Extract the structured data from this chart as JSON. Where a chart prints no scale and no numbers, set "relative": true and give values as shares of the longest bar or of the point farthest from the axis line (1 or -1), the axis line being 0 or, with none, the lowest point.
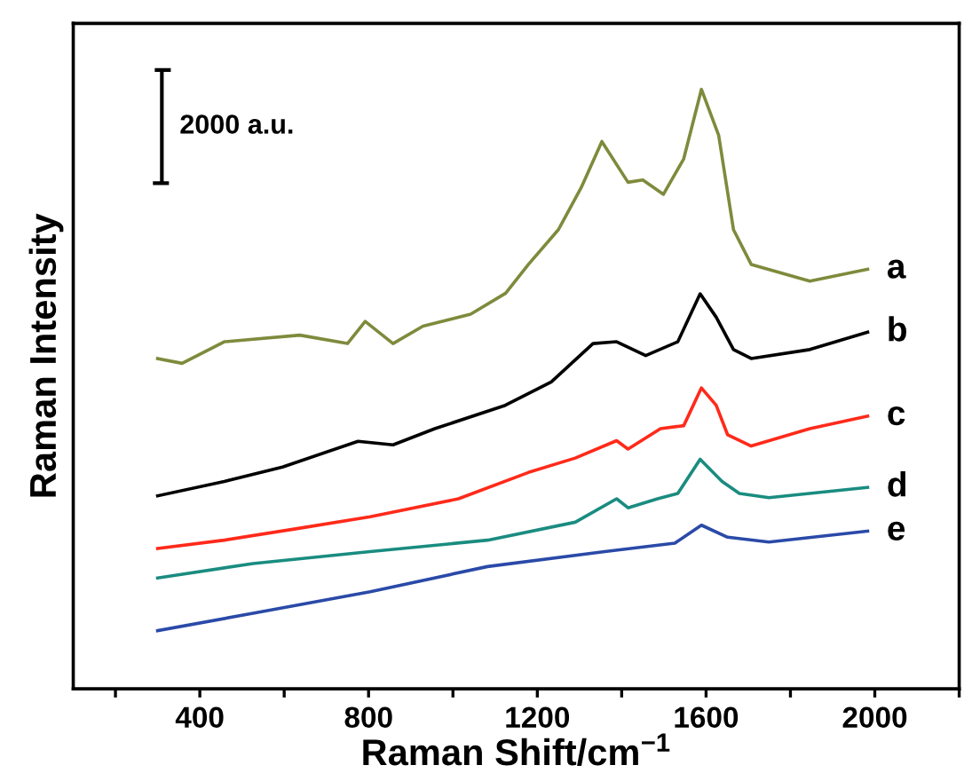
{
  "chart_data": {
    "type": "line",
    "relative": true,
    "xlabel": "Raman Shift/cm$^{−1}$",
    "ylabel": "Raman Intensity",
    "annotations": [
      "2000 a.u."
    ],
    "xlim": [
      100,
      2200
    ],
    "xticks": [
      {
        "value": 200,
        "label": null
      },
      400,
      {
        "value": 600,
        "label": null
      },
      800,
      {
        "value": 1000,
        "label": null
      },
      1200,
      {
        "value": 1400,
        "label": null
      },
      1600,
      {
        "value": 1800,
        "label": null
      },
      2000,
      {
        "value": 2200,
        "label": null
      }
    ],
    "legend": false,
    "marker": "none",
    "line_style": "solid",
    "series": [
      {
        "name": "a",
        "color": "#7f8a3c",
        "x": [
          300,
          358,
          458,
          637,
          750,
          792,
          858,
          929,
          1042,
          1125,
          1179,
          1250,
          1304,
          1353,
          1415,
          1450,
          1499,
          1547,
          1589,
          1630,
          1665,
          1707,
          1846,
          1983
        ],
        "values": [
          0.551,
          0.543,
          0.579,
          0.59,
          0.576,
          0.613,
          0.576,
          0.605,
          0.625,
          0.66,
          0.708,
          0.766,
          0.836,
          0.913,
          0.845,
          0.849,
          0.825,
          0.884,
          1.0,
          0.923,
          0.766,
          0.708,
          0.68,
          0.7
        ]
      },
      {
        "name": "b",
        "color": "#000000",
        "x": [
          300,
          458,
          596,
          775,
          858,
          957,
          1124,
          1233,
          1332,
          1388,
          1457,
          1533,
          1586,
          1624,
          1665,
          1707,
          1846,
          1983
        ],
        "values": [
          0.322,
          0.346,
          0.37,
          0.413,
          0.407,
          0.434,
          0.473,
          0.512,
          0.576,
          0.579,
          0.556,
          0.579,
          0.659,
          0.62,
          0.566,
          0.551,
          0.566,
          0.595
        ]
      },
      {
        "name": "c",
        "color": "#ff2a1a",
        "x": [
          300,
          458,
          637,
          804,
          1013,
          1179,
          1290,
          1388,
          1415,
          1492,
          1547,
          1589,
          1624,
          1651,
          1707,
          1846,
          1983
        ],
        "values": [
          0.234,
          0.248,
          0.268,
          0.287,
          0.317,
          0.361,
          0.385,
          0.414,
          0.4,
          0.434,
          0.439,
          0.502,
          0.473,
          0.424,
          0.405,
          0.434,
          0.455
        ]
      },
      {
        "name": "d",
        "color": "#1a8c80",
        "x": [
          300,
          526,
          804,
          1082,
          1290,
          1388,
          1415,
          1485,
          1533,
          1586,
          1638,
          1679,
          1749,
          1983
        ],
        "values": [
          0.185,
          0.209,
          0.229,
          0.248,
          0.278,
          0.317,
          0.302,
          0.317,
          0.326,
          0.383,
          0.346,
          0.326,
          0.319,
          0.336
        ]
      },
      {
        "name": "e",
        "color": "#2a4aa8",
        "x": [
          300,
          526,
          804,
          1082,
          1360,
          1526,
          1589,
          1651,
          1749,
          1983
        ],
        "values": [
          0.097,
          0.126,
          0.162,
          0.204,
          0.229,
          0.243,
          0.273,
          0.253,
          0.245,
          0.263
        ]
      }
    ]
  }
}
